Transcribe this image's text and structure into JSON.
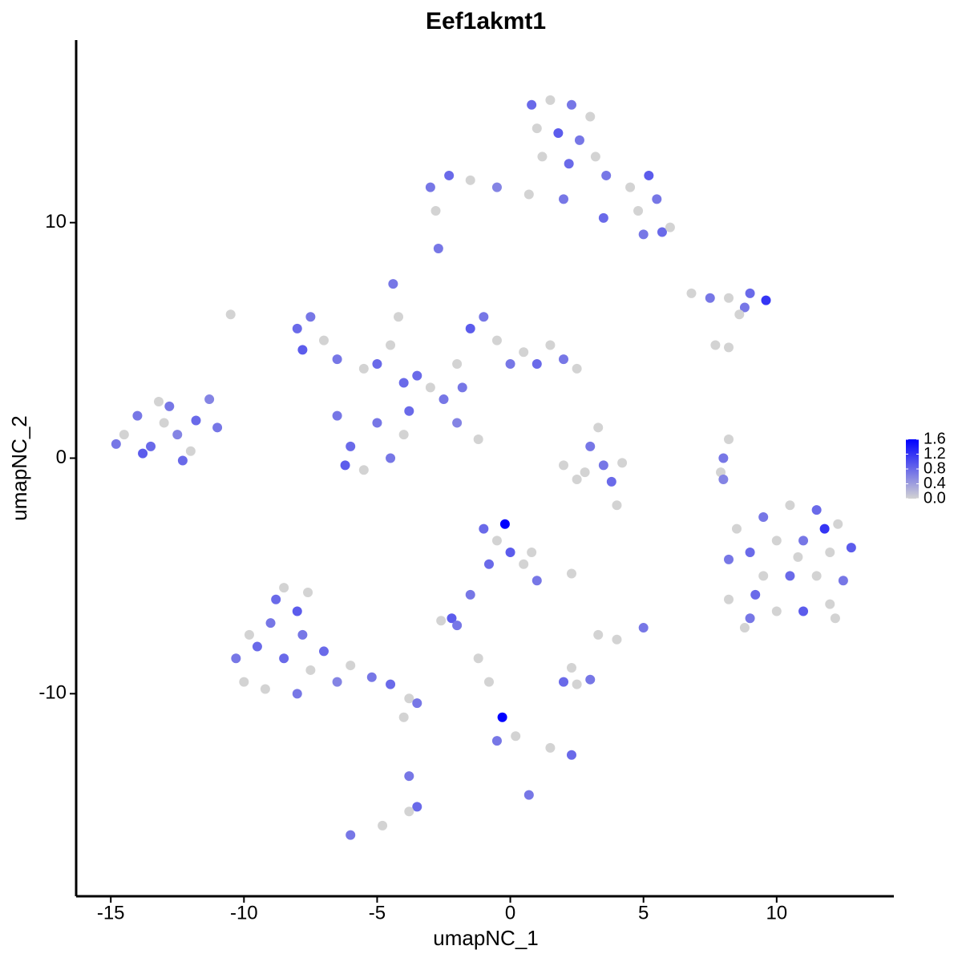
{
  "chart_data": {
    "type": "scatter",
    "title": "Eef1akmt1",
    "x_label": "umapNC_1",
    "y_label": "umapNC_2",
    "xlim": [
      -16.3,
      14.4
    ],
    "ylim": [
      -18.6,
      17.75
    ],
    "xticks": [
      -15,
      -10,
      -5,
      0,
      5,
      10
    ],
    "yticks": [
      -10,
      0,
      10
    ],
    "color_low": "#d3d3d3",
    "color_high": "#0000ff",
    "clim": [
      0,
      1.6
    ],
    "colorbar_ticks": [
      {
        "value": 0,
        "label": "0.0"
      },
      {
        "value": 0.4,
        "label": "0.4"
      },
      {
        "value": 0.8,
        "label": "0.8"
      },
      {
        "value": 1.2,
        "label": "1.2"
      },
      {
        "value": 1.6,
        "label": "1.6"
      }
    ],
    "x": [
      -14.5,
      -14.0,
      -13.5,
      -13.0,
      -12.5,
      -12.0,
      -13.8,
      -12.8,
      -11.8,
      -11.3,
      -14.8,
      -12.3,
      -13.2,
      -11.0,
      0.8,
      1.5,
      2.3,
      3.0,
      1.0,
      1.8,
      2.6,
      1.2,
      2.2,
      3.2,
      3.6,
      4.5,
      5.2,
      5.5,
      4.8,
      5.7,
      6.0,
      5.0,
      -2.3,
      -3.0,
      -1.5,
      -0.5,
      0.7,
      2.0,
      3.5,
      -2.8,
      -2.7,
      6.8,
      7.5,
      8.2,
      9.0,
      9.6,
      8.8,
      8.6,
      7.7,
      8.2,
      -8.0,
      -7.5,
      -7.0,
      -7.8,
      -6.5,
      -5.5,
      -5.0,
      -4.5,
      -4.4,
      -4.2,
      -6.5,
      -6.0,
      -5.5,
      -4.5,
      -4.0,
      -6.2,
      -5.0,
      -3.8,
      -3.0,
      -2.5,
      -3.5,
      -2.0,
      -1.5,
      -1.0,
      -0.5,
      0.0,
      0.5,
      1.0,
      1.5,
      2.0,
      2.5,
      -1.2,
      -2.0,
      -10.5,
      -1.8,
      -4.0,
      2.0,
      2.8,
      3.5,
      4.2,
      3.0,
      3.3,
      3.8,
      2.5,
      4.0,
      8.2,
      8.0,
      7.9,
      8.0,
      8.5,
      9.5,
      10.5,
      11.5,
      12.3,
      12.8,
      12.0,
      11.0,
      10.0,
      9.0,
      8.2,
      9.5,
      10.5,
      11.5,
      12.5,
      12.0,
      11.0,
      10.0,
      9.0,
      8.2,
      9.2,
      10.8,
      11.8,
      12.2,
      8.8,
      -1.0,
      -0.5,
      0.0,
      0.5,
      1.0,
      -0.8,
      -0.2,
      0.8,
      -1.5,
      -2.2,
      -2.6,
      -2.0,
      2.3,
      -10.3,
      -10.0,
      -9.5,
      -9.0,
      -8.8,
      -8.5,
      -8.0,
      -7.6,
      -8.5,
      -9.2,
      -8.0,
      -7.5,
      -7.8,
      -7.0,
      -6.0,
      -5.2,
      -4.5,
      -3.8,
      -3.5,
      -6.5,
      -9.8,
      -4.0,
      -3.8,
      -3.5,
      -3.8,
      -6.0,
      -4.8,
      2.0,
      2.5,
      3.0,
      2.3,
      3.3,
      -0.3,
      -0.5,
      0.2,
      1.5,
      2.3,
      -0.8,
      0.7,
      -1.2,
      4.0,
      5.0
    ],
    "y": [
      1.0,
      1.8,
      0.5,
      1.5,
      1.0,
      0.3,
      0.2,
      2.2,
      1.6,
      2.5,
      0.6,
      -0.1,
      2.4,
      1.3,
      15.0,
      15.2,
      15.0,
      14.5,
      14.0,
      13.8,
      13.5,
      12.8,
      12.5,
      12.8,
      12.0,
      11.5,
      12.0,
      11.0,
      10.5,
      9.6,
      9.8,
      9.5,
      12.0,
      11.5,
      11.8,
      11.5,
      11.2,
      11.0,
      10.2,
      10.5,
      8.9,
      7.0,
      6.8,
      6.8,
      7.0,
      6.7,
      6.4,
      6.1,
      4.8,
      4.7,
      5.5,
      6.0,
      5.0,
      4.6,
      4.2,
      3.8,
      4.0,
      4.8,
      7.4,
      6.0,
      1.8,
      0.5,
      -0.5,
      0.0,
      1.0,
      -0.3,
      1.5,
      2.0,
      3.0,
      2.5,
      3.5,
      4.0,
      5.5,
      6.0,
      5.0,
      4.0,
      4.5,
      4.0,
      4.8,
      4.2,
      3.8,
      0.8,
      1.5,
      6.1,
      3.0,
      3.2,
      -0.3,
      -0.6,
      -0.3,
      -0.2,
      0.5,
      1.3,
      -1.0,
      -0.9,
      -2.0,
      0.8,
      0.0,
      -0.6,
      -0.9,
      -3.0,
      -2.5,
      -2.0,
      -2.2,
      -2.8,
      -3.8,
      -4.0,
      -3.5,
      -3.5,
      -4.0,
      -4.3,
      -5.0,
      -5.0,
      -5.0,
      -5.2,
      -6.2,
      -6.5,
      -6.5,
      -6.8,
      -6.0,
      -5.8,
      -4.2,
      -3.0,
      -6.8,
      -7.2,
      -3.0,
      -3.5,
      -4.0,
      -4.5,
      -5.2,
      -4.5,
      -2.8,
      -4.0,
      -5.8,
      -6.8,
      -6.9,
      -7.1,
      -4.9,
      -8.5,
      -9.5,
      -8.0,
      -7.0,
      -6.0,
      -5.5,
      -6.5,
      -5.7,
      -8.5,
      -9.8,
      -10.0,
      -9.0,
      -7.5,
      -8.2,
      -8.8,
      -9.3,
      -9.6,
      -10.2,
      -10.4,
      -9.5,
      -7.5,
      -11.0,
      -13.5,
      -14.8,
      -15.0,
      -16.0,
      -15.6,
      -9.5,
      -9.6,
      -9.4,
      -8.9,
      -7.5,
      -11.0,
      -12.0,
      -11.8,
      -12.3,
      -12.6,
      -9.5,
      -14.3,
      -8.5,
      -7.7,
      -7.2
    ],
    "values": [
      0,
      0.7,
      0.8,
      0,
      0.6,
      0,
      0.9,
      0.7,
      0.8,
      0.6,
      0.7,
      0.8,
      0,
      0.7,
      0.8,
      0,
      0.7,
      0,
      0,
      0.9,
      0.7,
      0,
      0.8,
      0,
      0.7,
      0,
      0.9,
      0.7,
      0,
      0.8,
      0,
      0.7,
      0.8,
      0.7,
      0,
      0.6,
      0,
      0.7,
      0.8,
      0,
      0.7,
      0,
      0.7,
      0,
      0.8,
      1.2,
      0.7,
      0,
      0,
      0,
      0.8,
      0.7,
      0,
      0.9,
      0.7,
      0,
      0.8,
      0,
      0.7,
      0,
      0.7,
      0.8,
      0,
      0.7,
      0,
      0.9,
      0.7,
      0.8,
      0,
      0.7,
      0.8,
      0,
      0.9,
      0.7,
      0,
      0.7,
      0,
      0.8,
      0,
      0.7,
      0,
      0,
      0.6,
      0,
      0.7,
      0.8,
      0,
      0,
      0.7,
      0,
      0.7,
      0,
      0.8,
      0,
      0,
      0,
      0.7,
      0,
      0.6,
      0,
      0.7,
      0,
      0.8,
      0,
      0.9,
      0,
      0.7,
      0,
      0.8,
      0.7,
      0,
      0.8,
      0,
      0.7,
      0,
      0.9,
      0,
      0.7,
      0,
      0.8,
      0,
      1.2,
      0,
      0,
      0.8,
      0,
      0.9,
      0,
      0.7,
      0.8,
      1.6,
      0,
      0.7,
      0.9,
      0,
      0.7,
      0,
      0.7,
      0,
      0.8,
      0.7,
      0.8,
      0,
      0.9,
      0,
      0.8,
      0,
      0.7,
      0,
      0.7,
      0.8,
      0,
      0.7,
      0.8,
      0,
      0.7,
      0.6,
      0,
      0,
      0.7,
      0.8,
      0,
      0.7,
      0,
      0.8,
      0,
      0.7,
      0,
      0,
      1.6,
      0.7,
      0,
      0,
      0.8,
      0,
      0.7,
      0,
      0,
      0.7
    ]
  }
}
